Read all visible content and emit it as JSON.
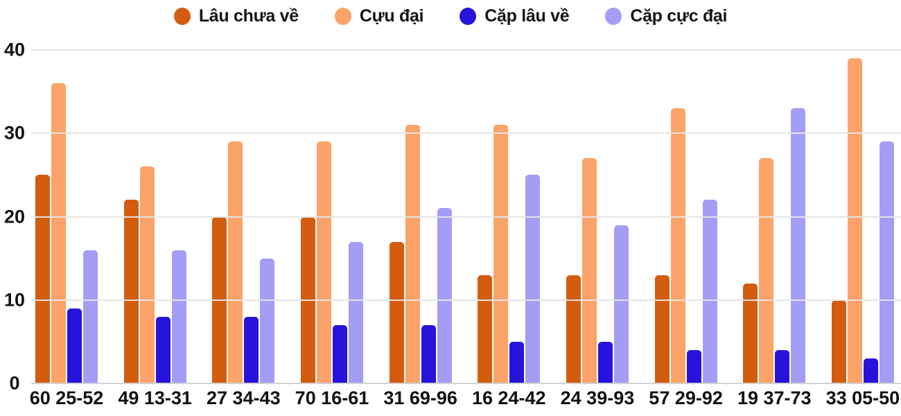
{
  "colors": {
    "series_1": "#d45c0e",
    "series_2": "#fba368",
    "series_3": "#2614dc",
    "series_4": "#a39df5",
    "gridline": "#e4e4e4",
    "baseline": "#d2d2d2",
    "text": "#141414",
    "background": "#ffffff"
  },
  "legend": {
    "items": [
      "Lâu chưa về",
      "Cựu đại",
      "Cặp lâu về",
      "Cặp cực đại"
    ]
  },
  "chart_data": {
    "type": "bar",
    "title": "",
    "xlabel": "",
    "ylabel": "",
    "categories": [
      "60 25-52",
      "49 13-31",
      "27 34-43",
      "70 16-61",
      "31 69-96",
      "16 24-42",
      "24 39-93",
      "57 29-92",
      "19 37-73",
      "33 05-50"
    ],
    "series": [
      {
        "name": "Lâu chưa về",
        "color": "#d45c0e",
        "values": [
          25,
          22,
          20,
          20,
          17,
          13,
          13,
          13,
          12,
          10
        ]
      },
      {
        "name": "Cựu đại",
        "color": "#fba368",
        "values": [
          36,
          26,
          29,
          29,
          31,
          31,
          27,
          33,
          27,
          39
        ]
      },
      {
        "name": "Cặp lâu về",
        "color": "#2614dc",
        "values": [
          9,
          8,
          8,
          7,
          7,
          5,
          5,
          4,
          4,
          3
        ]
      },
      {
        "name": "Cặp cực đại",
        "color": "#a39df5",
        "values": [
          16,
          16,
          15,
          17,
          21,
          25,
          19,
          22,
          33,
          29
        ]
      }
    ],
    "y_ticks": [
      0,
      10,
      20,
      30,
      40
    ],
    "ylim": [
      0,
      40
    ],
    "grid": true,
    "legend_position": "top"
  }
}
